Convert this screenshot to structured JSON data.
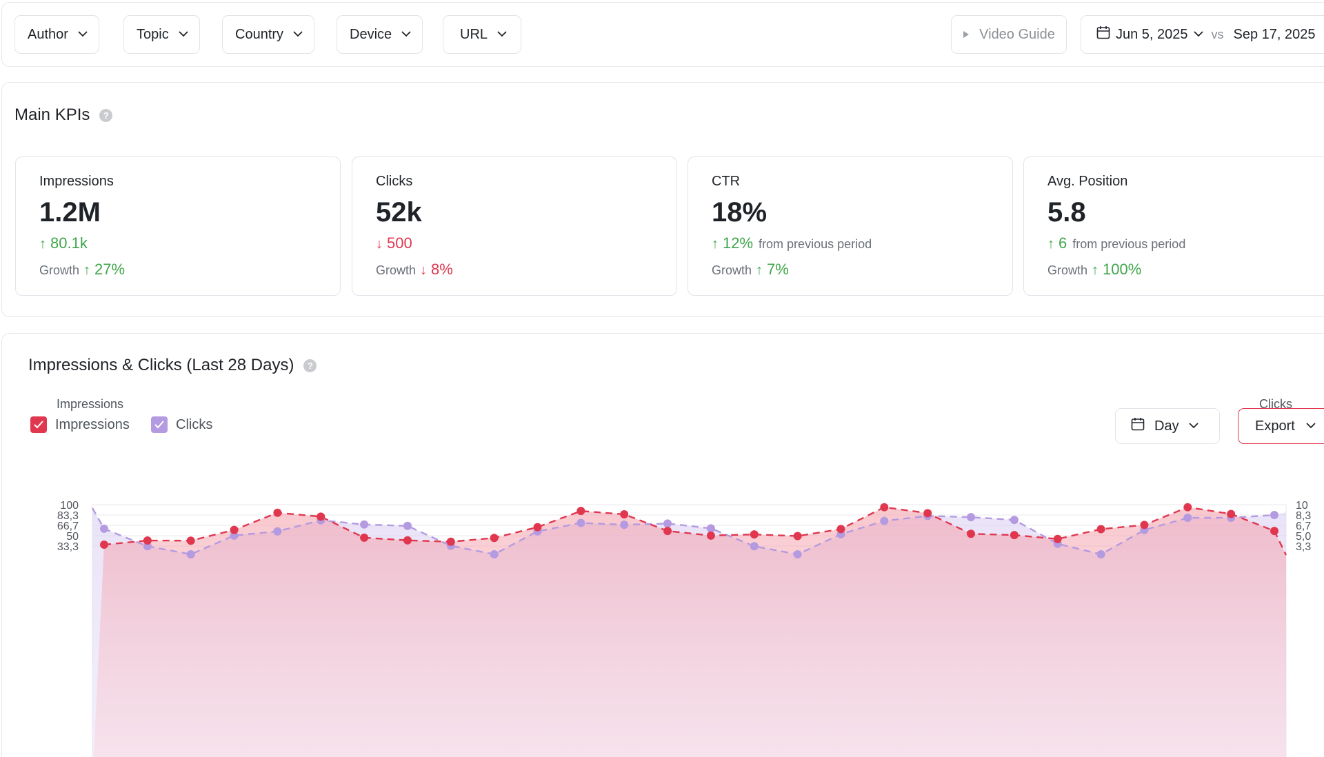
{
  "filters": {
    "author": "Author",
    "topic": "Topic",
    "country": "Country",
    "device": "Device",
    "url": "URL"
  },
  "video_guide": {
    "label": "Video Guide"
  },
  "date_range": {
    "start": "Jun 5, 2025",
    "vs": "vs",
    "end": "Sep 17, 2025"
  },
  "kpis": {
    "title": "Main KPIs",
    "help": "?",
    "cards": [
      {
        "label": "Impressions",
        "value": "1.2M",
        "delta": "80.1k",
        "delta_note": "",
        "direction": "up",
        "growth_label": "Growth",
        "growth": "27%",
        "growth_direction": "up"
      },
      {
        "label": "Clicks",
        "value": "52k",
        "delta": "500",
        "delta_note": "",
        "direction": "down",
        "growth_label": "Growth",
        "growth": "8%",
        "growth_direction": "down"
      },
      {
        "label": "CTR",
        "value": "18%",
        "delta": "12%",
        "delta_note": "from previous period",
        "direction": "up",
        "growth_label": "Growth",
        "growth": "7%",
        "growth_direction": "up"
      },
      {
        "label": "Avg. Position",
        "value": "5.8",
        "delta": "6",
        "delta_note": "from previous period",
        "direction": "up",
        "growth_label": "Growth",
        "growth": "100%",
        "growth_direction": "up"
      }
    ]
  },
  "chart_panel": {
    "title": "Impressions & Clicks (Last 28 Days)",
    "help": "?",
    "legend": {
      "impressions": "Impressions",
      "clicks": "Clicks"
    },
    "granularity": "Day",
    "export_label": "Export"
  },
  "colors": {
    "impressions": "#e0374f",
    "clicks": "#b49ae0",
    "up": "#3fa64a",
    "down": "#e0374f"
  },
  "chart_data": {
    "type": "line",
    "x": [
      1,
      2,
      3,
      4,
      5,
      6,
      7,
      8,
      9,
      10,
      11,
      12,
      13,
      14,
      15,
      16,
      17,
      18,
      19,
      20,
      21,
      22,
      23,
      24,
      25,
      26,
      27,
      28
    ],
    "series": [
      {
        "name": "Impressions",
        "axis": "left",
        "values": [
          35.5,
          42.2,
          42.0,
          59.3,
          87.0,
          80.7,
          46.8,
          42.5,
          40.3,
          46.4,
          63.8,
          89.8,
          84.5,
          57.6,
          50.2,
          52.1,
          49.4,
          60.7,
          95.9,
          86.3,
          53.1,
          51.0,
          44.7,
          60.6,
          67.3,
          95.9,
          85.0,
          57.7
        ]
      },
      {
        "name": "Clicks",
        "axis": "right",
        "values": [
          6.12,
          3.3,
          2.0,
          5.02,
          5.7,
          7.49,
          6.8,
          6.58,
          3.37,
          2.0,
          5.7,
          7.06,
          6.77,
          6.96,
          6.18,
          3.3,
          2.0,
          5.24,
          7.38,
          8.19,
          7.98,
          7.54,
          3.7,
          2.0,
          5.91,
          7.89,
          7.89,
          8.33
        ]
      }
    ],
    "xlabel": "",
    "ylabel": "Impressions",
    "y2label": "Clicks",
    "ylim": [
      0,
      100
    ],
    "y2lim": [
      0,
      10
    ],
    "yticks": [
      "100",
      "83,3",
      "66,7",
      "50",
      "33,3"
    ],
    "y2ticks": [
      "10",
      "8,3",
      "6,7",
      "5,0",
      "3,3"
    ],
    "grid": true
  }
}
